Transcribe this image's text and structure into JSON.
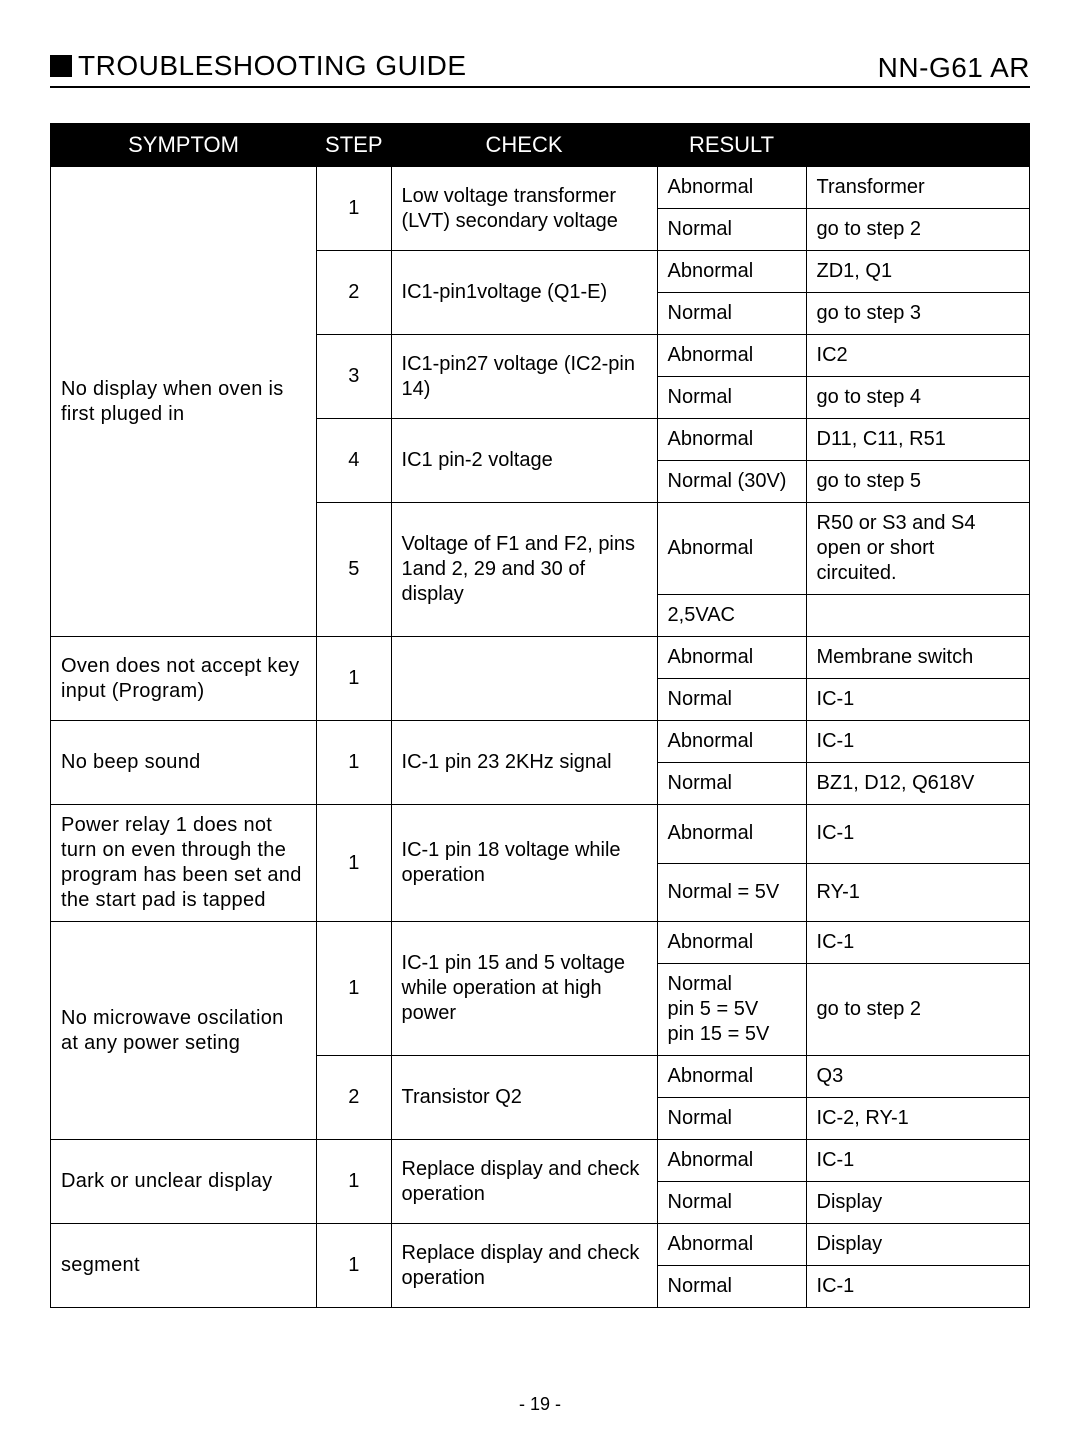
{
  "header": {
    "title": "TROUBLESHOOTING GUIDE",
    "model": "NN-G61 AR"
  },
  "table": {
    "columns": [
      "SYMPTOM",
      "STEP",
      "CHECK",
      "RESULT",
      ""
    ],
    "groups": [
      {
        "symptom": "No display when oven is first pluged in",
        "steps": [
          {
            "step": "1",
            "check": "Low voltage transformer (LVT) secondary voltage",
            "rows": [
              {
                "result": "Abnormal",
                "action": "Transformer"
              },
              {
                "result": "Normal",
                "action": "go to step 2"
              }
            ]
          },
          {
            "step": "2",
            "check": "IC1-pin1voltage (Q1-E)",
            "rows": [
              {
                "result": "Abnormal",
                "action": "ZD1, Q1"
              },
              {
                "result": "Normal",
                "action": "go to step 3"
              }
            ]
          },
          {
            "step": "3",
            "check": "IC1-pin27 voltage (IC2-pin 14)",
            "rows": [
              {
                "result": "Abnormal",
                "action": "IC2"
              },
              {
                "result": "Normal",
                "action": "go to step 4"
              }
            ]
          },
          {
            "step": "4",
            "check": "IC1 pin-2 voltage",
            "rows": [
              {
                "result": "Abnormal",
                "action": "D11, C11, R51"
              },
              {
                "result": "Normal (30V)",
                "action": "go to step 5"
              }
            ]
          },
          {
            "step": "5",
            "check": "Voltage of F1 and F2, pins 1and 2, 29 and 30 of display",
            "rows": [
              {
                "result": "Abnormal",
                "action": "R50 or S3 and S4 open or short circuited."
              },
              {
                "result": "2,5VAC",
                "action": ""
              }
            ]
          }
        ]
      },
      {
        "symptom": "Oven does not accept key input (Program)",
        "steps": [
          {
            "step": "1",
            "check": "",
            "rows": [
              {
                "result": "Abnormal",
                "action": "Membrane switch"
              },
              {
                "result": "Normal",
                "action": "IC-1"
              }
            ]
          }
        ]
      },
      {
        "symptom": "No beep sound",
        "steps": [
          {
            "step": "1",
            "check": "IC-1 pin 23 2KHz signal",
            "rows": [
              {
                "result": "Abnormal",
                "action": "IC-1"
              },
              {
                "result": "Normal",
                "action": "BZ1, D12, Q618V"
              }
            ]
          }
        ]
      },
      {
        "symptom": "Power relay 1 does not turn on even through the program has been set and the start pad is tapped",
        "steps": [
          {
            "step": "1",
            "check": "IC-1 pin 18 voltage while operation",
            "rows": [
              {
                "result": "Abnormal",
                "action": "IC-1"
              },
              {
                "result": "Normal = 5V",
                "action": "RY-1"
              }
            ]
          }
        ]
      },
      {
        "symptom": "No microwave oscilation at any power seting",
        "steps": [
          {
            "step": "1",
            "check": "IC-1 pin 15 and 5 voltage while operation at high power",
            "rows": [
              {
                "result": "Abnormal",
                "action": "IC-1"
              },
              {
                "result": "Normal\npin   5 = 5V\npin 15 = 5V",
                "action": "go to step 2"
              }
            ]
          },
          {
            "step": "2",
            "check": "Transistor Q2",
            "rows": [
              {
                "result": "Abnormal",
                "action": "Q3"
              },
              {
                "result": "Normal",
                "action": "IC-2, RY-1"
              }
            ]
          }
        ]
      },
      {
        "symptom": "Dark or unclear display",
        "steps": [
          {
            "step": "1",
            "check": "Replace display and check operation",
            "rows": [
              {
                "result": "Abnormal",
                "action": "IC-1"
              },
              {
                "result": "Normal",
                "action": "Display"
              }
            ]
          }
        ]
      },
      {
        "symptom": "segment",
        "steps": [
          {
            "step": "1",
            "check": "Replace display and check operation",
            "rows": [
              {
                "result": "Abnormal",
                "action": "Display"
              },
              {
                "result": "Normal",
                "action": "IC-1"
              }
            ]
          }
        ]
      }
    ]
  },
  "pageNumber": "- 19 -"
}
